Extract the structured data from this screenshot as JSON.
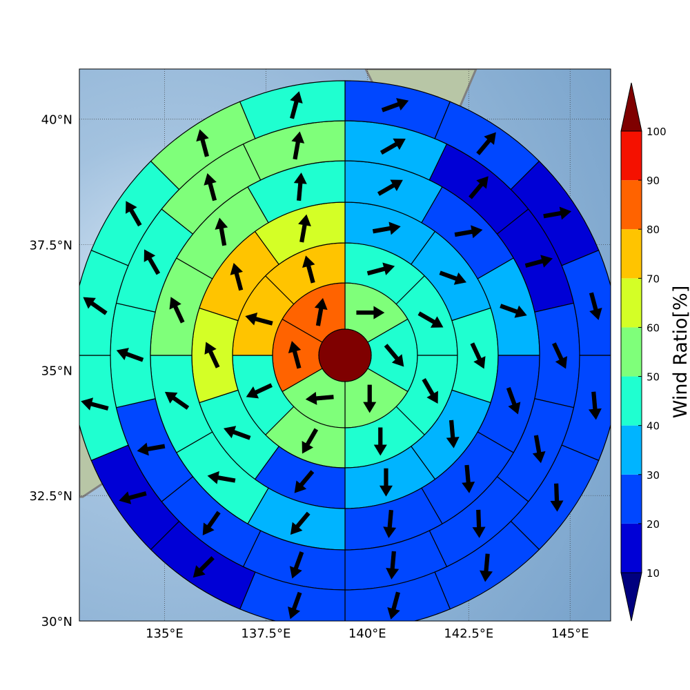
{
  "chart_data": {
    "type": "heatmap",
    "title": "",
    "xlim": [
      132.9,
      146.0
    ],
    "ylim": [
      30.0,
      41.0
    ],
    "x_ticks": [
      "135°E",
      "137.5°E",
      "140°E",
      "142.5°E",
      "145°E"
    ],
    "x_tick_values": [
      135,
      137.5,
      140,
      142.5,
      145
    ],
    "y_ticks": [
      "40°N",
      "37.5°N",
      "35°N",
      "32.5°N",
      "30°N"
    ],
    "y_tick_values": [
      40,
      37.5,
      35,
      32.5,
      30
    ],
    "grid": true,
    "center": {
      "lon": 139.4,
      "lat": 35.4
    },
    "center_value": 100,
    "rings": [
      {
        "sectors": 6,
        "values": [
          55,
          45,
          55,
          55,
          85,
          85
        ],
        "wind_dir_deg": [
          90,
          140,
          180,
          265,
          345,
          10
        ]
      },
      {
        "sectors": 8,
        "values": [
          45,
          45,
          45,
          45,
          55,
          45,
          75,
          75
        ],
        "wind_dir_deg": [
          75,
          120,
          150,
          180,
          210,
          245,
          285,
          345
        ]
      },
      {
        "sectors": 10,
        "values": [
          35,
          35,
          45,
          35,
          35,
          25,
          45,
          65,
          75,
          65
        ],
        "wind_dir_deg": [
          80,
          110,
          155,
          175,
          180,
          220,
          290,
          335,
          345,
          10
        ]
      },
      {
        "sectors": 12,
        "values": [
          35,
          25,
          35,
          25,
          25,
          25,
          35,
          45,
          45,
          55,
          55,
          45
        ],
        "wind_dir_deg": [
          60,
          80,
          110,
          160,
          175,
          185,
          220,
          280,
          305,
          335,
          350,
          5
        ]
      },
      {
        "sectors": 14,
        "values": [
          35,
          15,
          15,
          25,
          25,
          25,
          25,
          25,
          25,
          25,
          45,
          45,
          55,
          55
        ],
        "wind_dir_deg": [
          60,
          40,
          75,
          155,
          170,
          178,
          185,
          200,
          215,
          260,
          290,
          330,
          345,
          10
        ]
      },
      {
        "sectors": 16,
        "values": [
          25,
          25,
          15,
          25,
          25,
          25,
          25,
          25,
          25,
          15,
          15,
          45,
          45,
          45,
          55,
          45
        ],
        "wind_dir_deg": [
          70,
          40,
          80,
          165,
          175,
          178,
          185,
          195,
          200,
          225,
          255,
          285,
          305,
          330,
          345,
          15
        ]
      }
    ],
    "colorbar": {
      "label": "Wind Ratio[%]",
      "ticks": [
        "10",
        "20",
        "30",
        "40",
        "50",
        "60",
        "70",
        "80",
        "90",
        "100"
      ],
      "levels": [
        10,
        20,
        30,
        40,
        50,
        60,
        70,
        80,
        90,
        100
      ],
      "colors": [
        "#0000d6",
        "#0047ff",
        "#00b4ff",
        "#1fffd0",
        "#7fff7a",
        "#d4ff26",
        "#ffc400",
        "#ff6300",
        "#f51100"
      ],
      "under_color": "#00007f",
      "over_color": "#7f0000"
    }
  },
  "colors": {
    "ocean": "#86aed3",
    "land": "#b9c9ac",
    "coast": "#808080",
    "arrow": "#000000",
    "grid": "#444444"
  }
}
